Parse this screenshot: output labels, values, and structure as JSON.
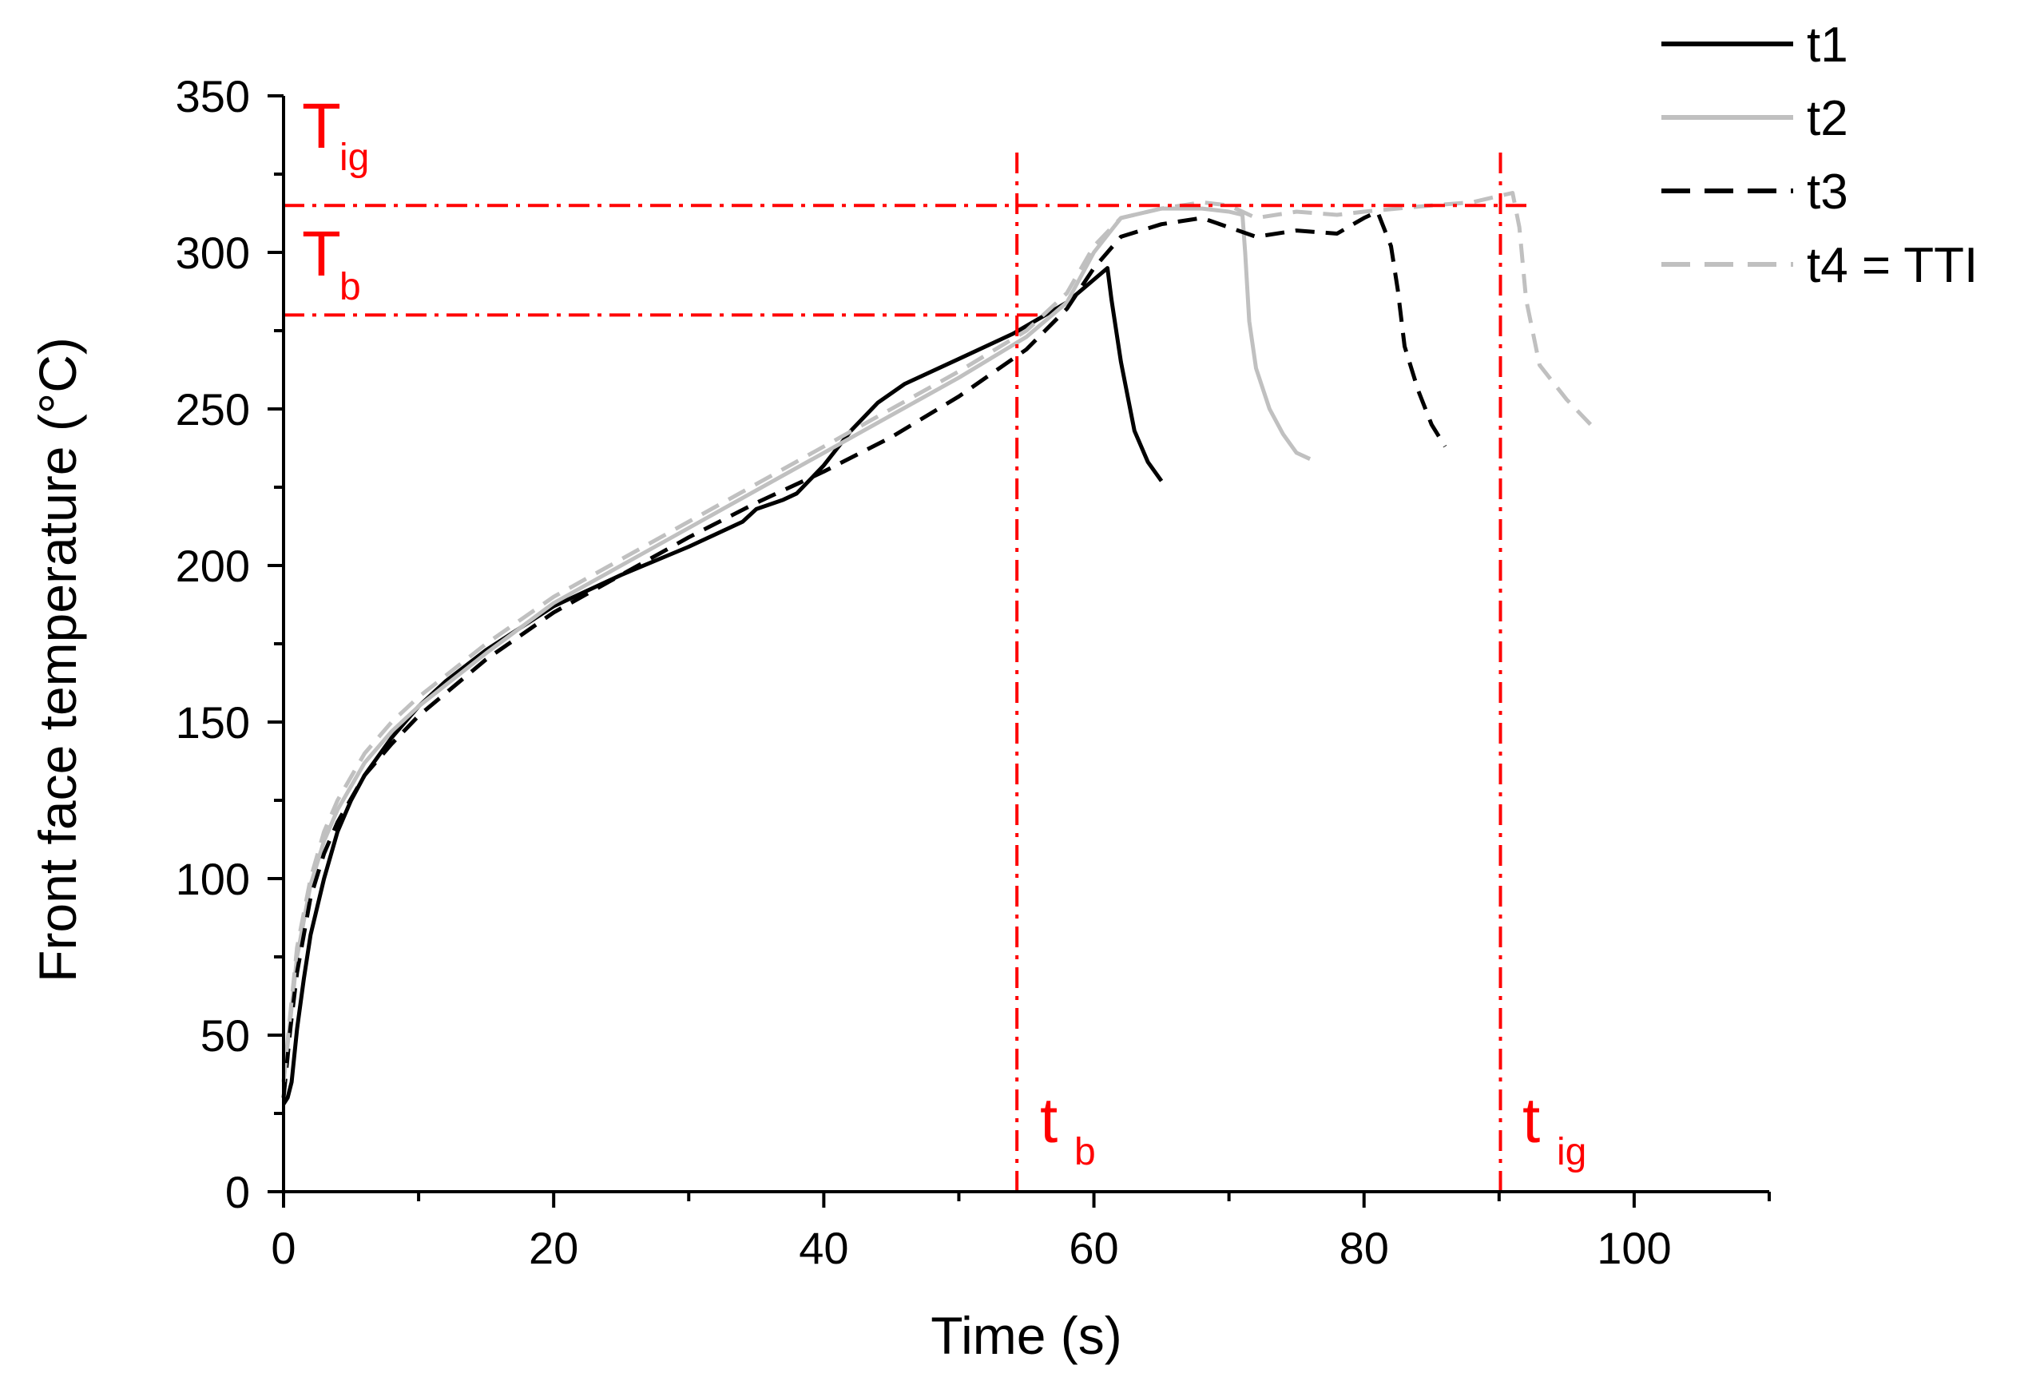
{
  "chart_data": {
    "type": "line",
    "title": "",
    "xlabel": "Time (s)",
    "ylabel": "Front face temperature (°C)",
    "xlim": [
      0,
      110
    ],
    "ylim": [
      0,
      350
    ],
    "xticks": [
      0,
      20,
      40,
      60,
      80,
      100
    ],
    "yticks": [
      0,
      50,
      100,
      150,
      200,
      250,
      300,
      350
    ],
    "grid": false,
    "legend_position": "top-right",
    "series": [
      {
        "name": "t1",
        "color": "#000000",
        "dash": "solid",
        "x": [
          0,
          0.3,
          0.6,
          1,
          1.5,
          2,
          3,
          4,
          5,
          6,
          8,
          10,
          12,
          15,
          20,
          25,
          30,
          34,
          35,
          37,
          38,
          40,
          42,
          44,
          46,
          50,
          54,
          58,
          61,
          61.3,
          62,
          63,
          64,
          65
        ],
        "y": [
          28,
          30,
          35,
          52,
          68,
          82,
          100,
          115,
          125,
          133,
          145,
          155,
          163,
          173,
          187,
          197,
          206,
          214,
          218,
          221,
          223,
          232,
          243,
          252,
          258,
          266,
          274,
          284,
          295,
          285,
          265,
          243,
          233,
          227
        ]
      },
      {
        "name": "t2",
        "color": "#c0c0c0",
        "dash": "solid",
        "x": [
          0,
          0.5,
          1,
          2,
          3,
          4,
          6,
          8,
          10,
          15,
          20,
          25,
          30,
          35,
          40,
          45,
          50,
          55,
          58,
          60,
          62,
          65,
          68,
          70,
          71,
          71.2,
          71.5,
          72,
          73,
          74,
          75,
          76
        ],
        "y": [
          35,
          55,
          75,
          98,
          112,
          122,
          137,
          147,
          155,
          172,
          188,
          200,
          212,
          224,
          236,
          248,
          260,
          273,
          284,
          300,
          311,
          314,
          314,
          313,
          312,
          300,
          278,
          263,
          250,
          242,
          236,
          234
        ]
      },
      {
        "name": "t3",
        "color": "#000000",
        "dash": "dashed",
        "x": [
          0,
          0.5,
          1,
          2,
          3,
          4,
          6,
          8,
          10,
          15,
          20,
          25,
          30,
          35,
          40,
          45,
          50,
          55,
          58,
          60,
          62,
          65,
          68,
          70,
          72,
          75,
          78,
          80,
          81,
          82,
          82.5,
          83,
          84,
          85,
          86
        ],
        "y": [
          30,
          52,
          70,
          94,
          108,
          118,
          133,
          143,
          152,
          170,
          185,
          197,
          209,
          220,
          230,
          241,
          254,
          269,
          282,
          295,
          305,
          309,
          311,
          308,
          305,
          307,
          306,
          311,
          313,
          302,
          288,
          270,
          256,
          245,
          238
        ]
      },
      {
        "name": "t4 = TTI",
        "color": "#c0c0c0",
        "dash": "dashed",
        "x": [
          0,
          0.5,
          1,
          2,
          3,
          4,
          6,
          8,
          10,
          15,
          20,
          25,
          30,
          35,
          40,
          45,
          50,
          55,
          58,
          60,
          62,
          65,
          68,
          70,
          72,
          75,
          78,
          80,
          85,
          88,
          90,
          91,
          91.5,
          92,
          93,
          95,
          97
        ],
        "y": [
          35,
          57,
          78,
          100,
          115,
          125,
          140,
          150,
          158,
          175,
          190,
          202,
          214,
          226,
          238,
          250,
          262,
          275,
          287,
          302,
          311,
          314,
          316,
          315,
          311,
          313,
          312,
          313,
          315,
          316,
          318,
          319,
          308,
          285,
          264,
          253,
          244
        ]
      }
    ],
    "reference_lines": [
      {
        "orientation": "horizontal",
        "value": 315,
        "label": "T",
        "subscript": "ig",
        "color": "#ff0000",
        "x_end": 92.5
      },
      {
        "orientation": "horizontal",
        "value": 280,
        "label": "T",
        "subscript": "b",
        "color": "#ff0000",
        "x_end": 56
      },
      {
        "orientation": "vertical",
        "value": 54.3,
        "label": "t",
        "subscript": "b",
        "color": "#ff0000",
        "y_end": 332
      },
      {
        "orientation": "vertical",
        "value": 90.1,
        "label": "t",
        "subscript": "ig",
        "color": "#ff0000",
        "y_end": 332
      }
    ]
  }
}
